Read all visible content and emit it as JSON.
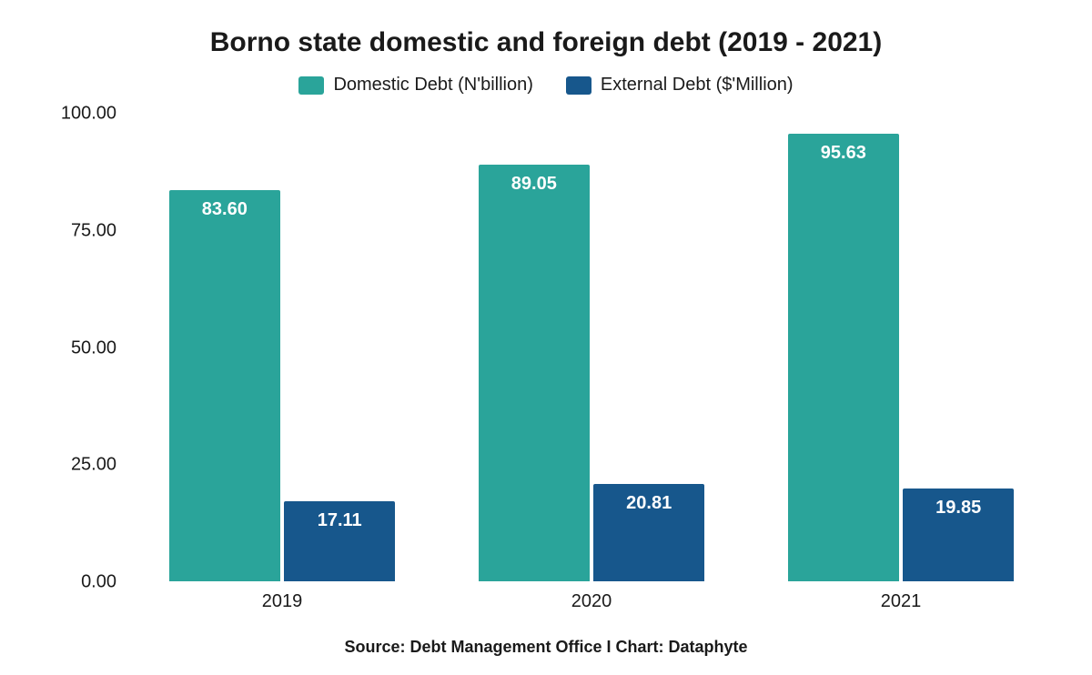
{
  "chart": {
    "type": "bar",
    "title": "Borno state domestic and foreign debt (2019 - 2021)",
    "title_fontsize": 30,
    "title_color": "#1a1a1a",
    "background_color": "#ffffff",
    "source": "Source: Debt Management Office I Chart: Dataphyte",
    "source_fontsize": 18,
    "legend": {
      "position": "top",
      "items": [
        {
          "label": "Domestic Debt (N'billion)",
          "color": "#2aa49a"
        },
        {
          "label": "External Debt ($'Million)",
          "color": "#17578c"
        }
      ],
      "fontsize": 20
    },
    "y_axis": {
      "ylim": [
        0,
        100
      ],
      "ticks": [
        0.0,
        25.0,
        50.0,
        75.0,
        100.0
      ],
      "tick_labels": [
        "0.00",
        "25.00",
        "50.00",
        "75.00",
        "100.00"
      ],
      "fontsize": 20,
      "color": "#1a1a1a"
    },
    "x_axis": {
      "categories": [
        "2019",
        "2020",
        "2021"
      ],
      "fontsize": 20,
      "color": "#1a1a1a"
    },
    "series": [
      {
        "name": "Domestic Debt (N'billion)",
        "color": "#2aa49a",
        "values": [
          83.6,
          89.05,
          95.63
        ],
        "value_labels": [
          "83.60",
          "89.05",
          "95.63"
        ]
      },
      {
        "name": "External Debt ($'Million)",
        "color": "#17578c",
        "values": [
          17.11,
          20.81,
          19.85
        ],
        "value_labels": [
          "17.11",
          "20.81",
          "19.85"
        ]
      }
    ],
    "bar_width_pct": 36,
    "bar_group_gap_pct": 2,
    "bar_label_color": "#ffffff",
    "bar_label_fontsize": 20
  }
}
